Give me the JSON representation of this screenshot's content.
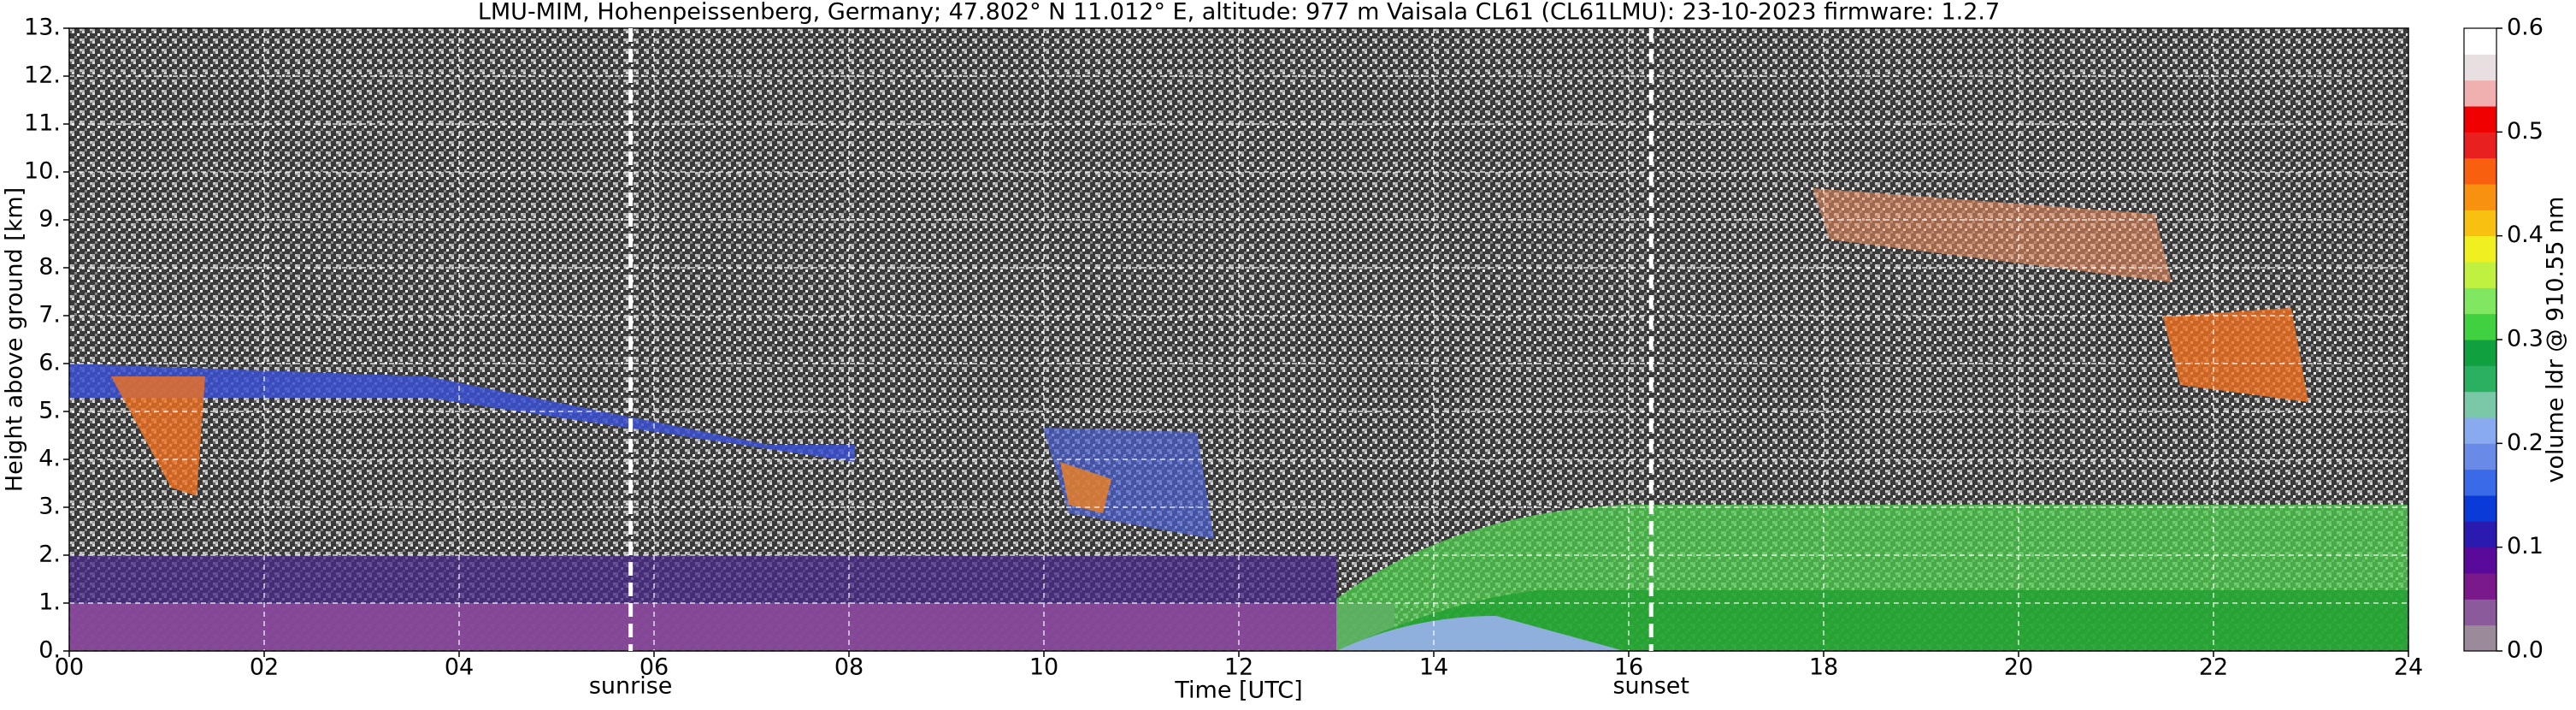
{
  "chart_data": {
    "type": "heatmap",
    "title": "LMU-MIM, Hohenpeissenberg, Germany; 47.802° N 11.012° E, altitude: 977 m    Vaisala CL61 (CL61LMU): 23-10-2023    firmware: 1.2.7",
    "xlabel": "Time [UTC]",
    "ylabel": "Height above ground [km]",
    "xlim": [
      0,
      24
    ],
    "xticks": [
      {
        "value": 0,
        "label": "00"
      },
      {
        "value": 2,
        "label": "02"
      },
      {
        "value": 4,
        "label": "04"
      },
      {
        "value": 6,
        "label": "06"
      },
      {
        "value": 8,
        "label": "08"
      },
      10,
      12,
      14,
      16,
      18,
      20,
      22,
      24
    ],
    "ylim": [
      0,
      13
    ],
    "yticks": [
      {
        "value": 0,
        "label": "0."
      },
      {
        "value": 1,
        "label": "1."
      },
      {
        "value": 2,
        "label": "2."
      },
      {
        "value": 3,
        "label": "3."
      },
      {
        "value": 4,
        "label": "4."
      },
      {
        "value": 5,
        "label": "5."
      },
      {
        "value": 6,
        "label": "6."
      },
      {
        "value": 7,
        "label": "7."
      },
      {
        "value": 8,
        "label": "8."
      },
      {
        "value": 9,
        "label": "9."
      },
      {
        "value": 10,
        "label": "10."
      },
      {
        "value": 11,
        "label": "11."
      },
      {
        "value": 12,
        "label": "12."
      },
      {
        "value": 13,
        "label": "13."
      }
    ],
    "grid": true,
    "annotations": [
      {
        "text": "sunrise",
        "x": 5.76
      },
      {
        "text": "sunset",
        "x": 16.23
      }
    ],
    "colorbar": {
      "label": "volume ldr @ 910.55 nm",
      "clim": [
        0,
        0.6
      ],
      "ticks": [
        {
          "value": 0,
          "label": "0.0"
        },
        0.1,
        0.2,
        0.3,
        0.4,
        0.5,
        0.6
      ],
      "colors": [
        "#9a8a9a",
        "#8a5a9a",
        "#7a1a8a",
        "#5a0a9a",
        "#2a1ab0",
        "#0a3ad8",
        "#3a6ae8",
        "#6a8ae8",
        "#8aaaf0",
        "#7ac8a8",
        "#2ab060",
        "#10a040",
        "#40d040",
        "#80e860",
        "#c0f040",
        "#f0f020",
        "#f8c010",
        "#f89010",
        "#f86010",
        "#e82020",
        "#f00000",
        "#f0b0b0",
        "#e8e0e0",
        "#ffffff"
      ]
    }
  }
}
